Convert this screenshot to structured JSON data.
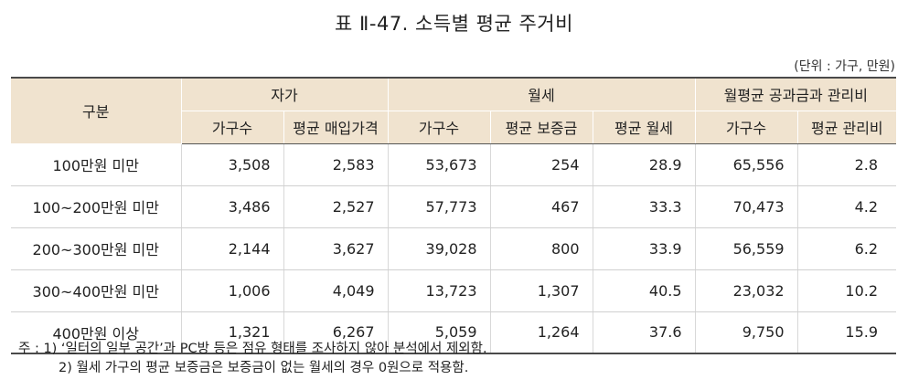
{
  "title": "표 Ⅱ-47. 소득별 평균 주거비",
  "unit": "(단위 : 가구, 만원)",
  "table": {
    "header_row1": {
      "stub": "구분",
      "group_own": "자가",
      "group_monthly": "월세",
      "group_fee": "월평균 공과금과 관리비"
    },
    "header_row2": [
      "가구수",
      "평균 매입가격",
      "가구수",
      "평균 보증금",
      "평균 월세",
      "가구수",
      "평균 관리비"
    ],
    "rows": [
      {
        "label": "100만원 미만",
        "cells": [
          "3,508",
          "2,583",
          "53,673",
          "254",
          "28.9",
          "65,556",
          "2.8"
        ]
      },
      {
        "label": "100~200만원 미만",
        "cells": [
          "3,486",
          "2,527",
          "57,773",
          "467",
          "33.3",
          "70,473",
          "4.2"
        ]
      },
      {
        "label": "200~300만원 미만",
        "cells": [
          "2,144",
          "3,627",
          "39,028",
          "800",
          "33.9",
          "56,559",
          "6.2"
        ]
      },
      {
        "label": "300~400만원 미만",
        "cells": [
          "1,006",
          "4,049",
          "13,723",
          "1,307",
          "40.5",
          "23,032",
          "10.2"
        ]
      },
      {
        "label": "400만원 이상",
        "cells": [
          "1,321",
          "6,267",
          "5,059",
          "1,264",
          "37.6",
          "9,750",
          "15.9"
        ]
      }
    ]
  },
  "notes": {
    "line1": "주 : 1) ‘일터의 일부 공간’과 PC방 등은 점유 형태를 조사하지 않아 분석에서 제외함.",
    "line2": "2) 월세 가구의 평균 보증금은 보증금이 없는 월세의 경우 0원으로 적용함."
  }
}
